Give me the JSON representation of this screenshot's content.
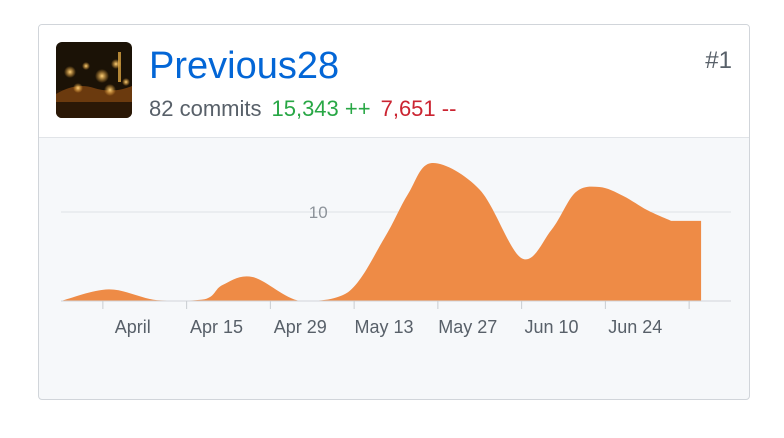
{
  "contributor": {
    "username": "Previous28",
    "commits": "82 commits",
    "additions": "15,343 ++",
    "deletions": "7,651 --",
    "rank": "#1",
    "avatar_icon": "night-city-photo-avatar"
  },
  "colors": {
    "area": "#ee8b46",
    "link": "#0366d6",
    "additions": "#28a745",
    "deletions": "#cb2431"
  },
  "chart_data": {
    "type": "area",
    "title": "",
    "xlabel": "",
    "ylabel": "",
    "ylim": [
      0,
      15.5
    ],
    "y_ticks": [
      10
    ],
    "x_tick_labels": [
      "April",
      "Apr 15",
      "Apr 29",
      "May 13",
      "May 27",
      "Jun 10",
      "Jun 24"
    ],
    "x_days": [
      0,
      8,
      16,
      24,
      27,
      32,
      40,
      48,
      54,
      58,
      62,
      70,
      77,
      82,
      86,
      90,
      94,
      98,
      102,
      107
    ],
    "values": [
      0,
      1.3,
      0.1,
      0.2,
      1.8,
      2.7,
      0,
      1.0,
      7.0,
      12.0,
      15.5,
      12.5,
      4.8,
      8.0,
      12.2,
      12.8,
      11.8,
      10.2,
      9.0,
      null
    ]
  }
}
